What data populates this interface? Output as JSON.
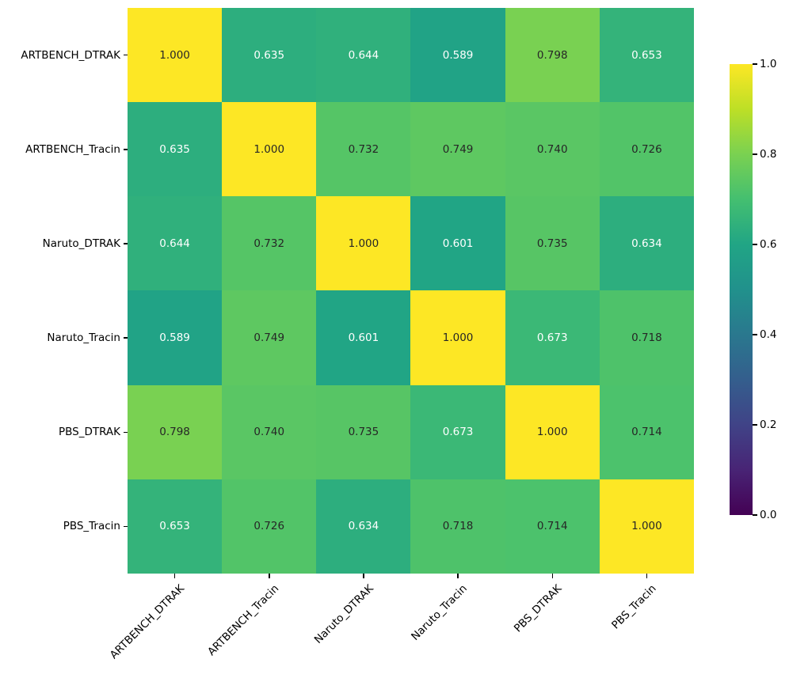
{
  "figure": {
    "background": "#ffffff",
    "text_color": "#000000"
  },
  "chart_data": {
    "type": "heatmap",
    "title": "",
    "xlabel": "",
    "ylabel": "",
    "categories": [
      "ARTBENCH_DTRAK",
      "ARTBENCH_Tracin",
      "Naruto_DTRAK",
      "Naruto_Tracin",
      "PBS_DTRAK",
      "PBS_Tracin"
    ],
    "matrix": [
      [
        1.0,
        0.635,
        0.644,
        0.589,
        0.798,
        0.653
      ],
      [
        0.635,
        1.0,
        0.732,
        0.749,
        0.74,
        0.726
      ],
      [
        0.644,
        0.732,
        1.0,
        0.601,
        0.735,
        0.634
      ],
      [
        0.589,
        0.749,
        0.601,
        1.0,
        0.673,
        0.718
      ],
      [
        0.798,
        0.74,
        0.735,
        0.673,
        1.0,
        0.714
      ],
      [
        0.653,
        0.726,
        0.634,
        0.718,
        0.714,
        1.0
      ]
    ],
    "decimals": 3,
    "vmin": 0.0,
    "vmax": 1.0,
    "grid": false,
    "colormap": "viridis",
    "colormap_stops": [
      [
        0.0,
        "#440154"
      ],
      [
        0.1,
        "#482475"
      ],
      [
        0.2,
        "#404387"
      ],
      [
        0.3,
        "#345e8d"
      ],
      [
        0.4,
        "#2a788e"
      ],
      [
        0.5,
        "#21918c"
      ],
      [
        0.6,
        "#21a585"
      ],
      [
        0.7,
        "#44bf70"
      ],
      [
        0.8,
        "#7ad151"
      ],
      [
        0.9,
        "#bddf26"
      ],
      [
        1.0,
        "#fde725"
      ]
    ],
    "colorbar": {
      "position": "right",
      "ticks": [
        {
          "label": "1.0",
          "value": 1.0
        },
        {
          "label": "0.8",
          "value": 0.8
        },
        {
          "label": "0.6",
          "value": 0.6
        },
        {
          "label": "0.4",
          "value": 0.4
        },
        {
          "label": "0.2",
          "value": 0.2
        },
        {
          "label": "0.0",
          "value": 0.0
        }
      ]
    },
    "annotation_dark_color": "#262626",
    "annotation_light_color": "#ffffff"
  }
}
